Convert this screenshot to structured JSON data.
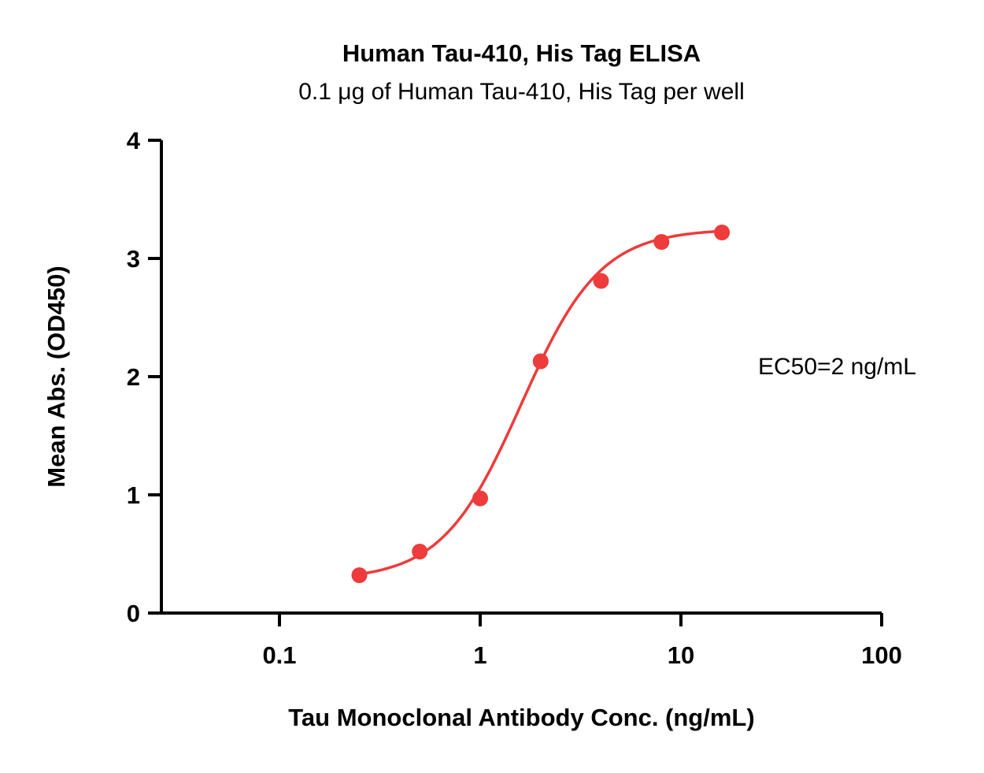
{
  "colors": {
    "series": "#EE3B3B",
    "axis": "#000000",
    "text": "#000000",
    "background": "#FFFFFF"
  },
  "chart_data": {
    "type": "scatter",
    "title": "Human Tau-410, His Tag ELISA",
    "subtitle": "0.1 μg of Human Tau-410, His Tag per well",
    "xlabel": "Tau Monoclonal Antibody Conc. (ng/mL)",
    "ylabel": "Mean Abs. (OD450)",
    "annotation": "EC50=2 ng/mL",
    "x_scale": "log10",
    "x": [
      0.25,
      0.5,
      1,
      2,
      4,
      8,
      16
    ],
    "y": [
      0.32,
      0.52,
      0.97,
      2.13,
      2.81,
      3.14,
      3.22
    ],
    "x_ticks": [
      0.1,
      1,
      10,
      100
    ],
    "x_tick_labels": [
      "0.1",
      "1",
      "10",
      "100"
    ],
    "xlim_log": [
      -1.59,
      2
    ],
    "y_ticks": [
      0,
      1,
      2,
      3,
      4
    ],
    "y_tick_labels": [
      "0",
      "1",
      "2",
      "3",
      "4"
    ],
    "ylim": [
      0,
      4
    ],
    "grid": false,
    "legend": null,
    "fit": {
      "model": "4PL",
      "bottom": 0.28,
      "top": 3.25,
      "ec50": 1.6,
      "hill": 2.2,
      "curve_x_range": [
        0.25,
        16
      ]
    }
  }
}
